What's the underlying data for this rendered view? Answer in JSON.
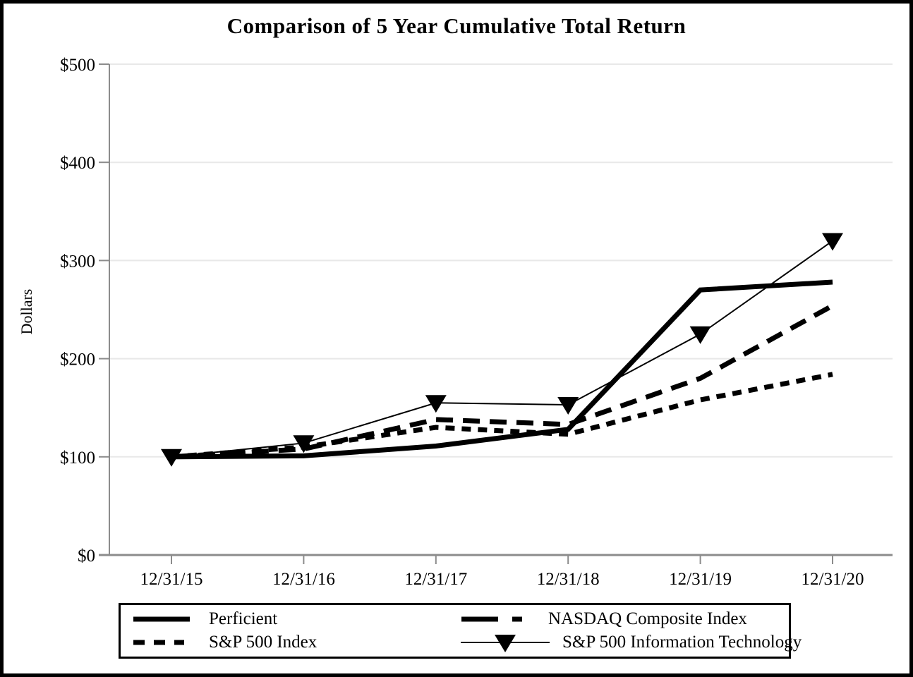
{
  "chart_data": {
    "type": "line",
    "title": "Comparison of 5 Year Cumulative Total Return",
    "xlabel": "",
    "ylabel": "Dollars",
    "categories": [
      "12/31/15",
      "12/31/16",
      "12/31/17",
      "12/31/18",
      "12/31/19",
      "12/31/20"
    ],
    "ylim": [
      0,
      500
    ],
    "yticks": [
      0,
      100,
      200,
      300,
      400,
      500
    ],
    "ytick_labels": [
      "$0",
      "$100",
      "$200",
      "$300",
      "$400",
      "$500"
    ],
    "grid": true,
    "legend_position": "bottom",
    "line_color": "#000000",
    "axis_color": "#8c8c8c",
    "gridline_color": "#e8e8e8",
    "series": [
      {
        "name": "Perficient",
        "line_style": "solid-thick",
        "marker": "none",
        "values": [
          100,
          101,
          111,
          128,
          270,
          278
        ]
      },
      {
        "name": "NASDAQ Composite Index",
        "line_style": "long-dash",
        "marker": "none",
        "values": [
          100,
          108,
          138,
          133,
          180,
          254
        ]
      },
      {
        "name": "S&P 500 Index",
        "line_style": "short-dash",
        "marker": "none",
        "values": [
          100,
          110,
          130,
          123,
          158,
          184
        ]
      },
      {
        "name": "S&P 500 Information Technology",
        "line_style": "thin-solid",
        "marker": "triangle-down",
        "values": [
          100,
          114,
          155,
          153,
          225,
          320
        ]
      }
    ]
  }
}
